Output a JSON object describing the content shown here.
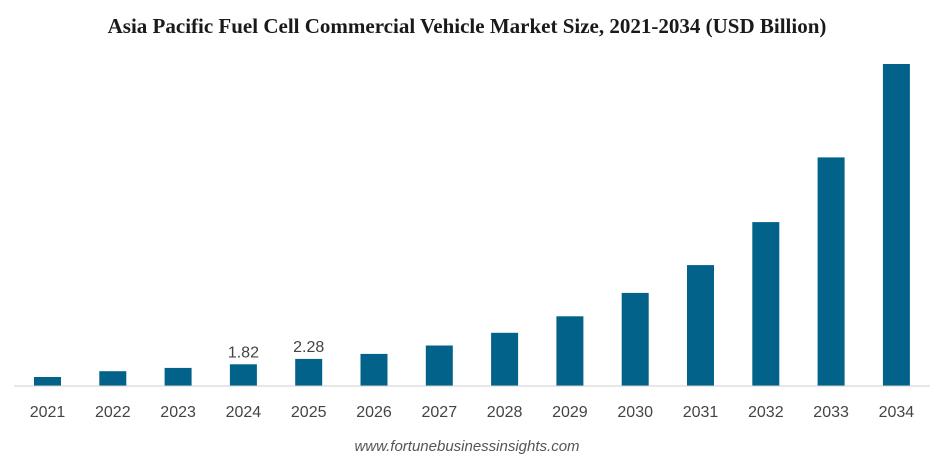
{
  "chart_data": {
    "type": "bar",
    "title": "Asia Pacific Fuel Cell Commercial Vehicle Market Size, 2021-2034 (USD Billion)",
    "xlabel": "",
    "ylabel": "",
    "categories": [
      "2021",
      "2022",
      "2023",
      "2024",
      "2025",
      "2026",
      "2027",
      "2028",
      "2029",
      "2030",
      "2031",
      "2032",
      "2033",
      "2034"
    ],
    "values": [
      0.76,
      1.24,
      1.52,
      1.82,
      2.28,
      2.7,
      3.4,
      4.47,
      5.86,
      7.82,
      10.16,
      13.77,
      19.21,
      27.06
    ],
    "data_labels": [
      null,
      null,
      null,
      "1.82",
      "2.28",
      null,
      null,
      null,
      null,
      null,
      null,
      null,
      null,
      null
    ],
    "ylim": [
      0,
      27.06
    ],
    "grid": false,
    "legend": "none",
    "bar_color": "#03628a"
  },
  "source": "www.fortunebusinessinsights.com"
}
